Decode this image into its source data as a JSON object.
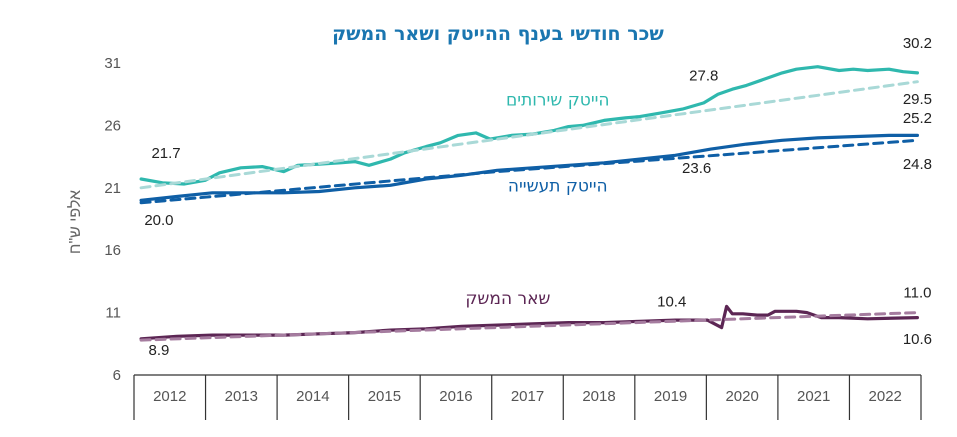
{
  "chart_data": {
    "type": "line",
    "title": "שכר חודשי בענף ההייטק ושאר המשק",
    "ylabel": "אלפי ש\"ח",
    "xlabel": "",
    "ylim": [
      6,
      33
    ],
    "yticks": [
      6,
      11,
      16,
      21,
      26,
      31
    ],
    "ytick_labels": [
      "6",
      "11",
      "16",
      "21",
      "26",
      "31"
    ],
    "xlim": [
      2011.9,
      2022.95
    ],
    "categories": [
      "2012",
      "2013",
      "2014",
      "2015",
      "2016",
      "2017",
      "2018",
      "2019",
      "2020",
      "2021",
      "2022"
    ],
    "grid": false,
    "series": [
      {
        "name": "הייטק שירותים",
        "color": "#2fb8ae",
        "dash": false,
        "x": [
          2012.0,
          2012.3,
          2012.6,
          2012.9,
          2013.1,
          2013.4,
          2013.7,
          2014.0,
          2014.2,
          2014.5,
          2014.8,
          2015.0,
          2015.2,
          2015.5,
          2015.7,
          2016.0,
          2016.2,
          2016.45,
          2016.7,
          2016.9,
          2017.2,
          2017.5,
          2017.8,
          2018.0,
          2018.2,
          2018.5,
          2018.8,
          2019.0,
          2019.3,
          2019.6,
          2019.9,
          2020.1,
          2020.3,
          2020.5,
          2020.8,
          2021.0,
          2021.2,
          2021.5,
          2021.8,
          2022.0,
          2022.2,
          2022.5,
          2022.7,
          2022.9
        ],
        "y": [
          21.7,
          21.4,
          21.3,
          21.6,
          22.2,
          22.6,
          22.7,
          22.3,
          22.8,
          22.9,
          23.0,
          23.1,
          22.8,
          23.3,
          23.8,
          24.3,
          24.6,
          25.2,
          25.4,
          24.9,
          25.2,
          25.3,
          25.6,
          25.9,
          26.0,
          26.4,
          26.6,
          26.7,
          27.0,
          27.3,
          27.8,
          28.5,
          28.9,
          29.2,
          29.8,
          30.2,
          30.5,
          30.7,
          30.4,
          30.5,
          30.4,
          30.5,
          30.3,
          30.2
        ]
      },
      {
        "name": "הייטק שירותים מגמה",
        "color": "#a9d9d7",
        "dash": true,
        "x": [
          2012.0,
          2022.9
        ],
        "y": [
          21.0,
          29.5
        ]
      },
      {
        "name": "הייטק תעשייה",
        "color": "#0f5fa6",
        "dash": false,
        "x": [
          2012.0,
          2012.5,
          2013.0,
          2013.5,
          2014.0,
          2014.5,
          2015.0,
          2015.5,
          2016.0,
          2016.5,
          2017.0,
          2017.5,
          2018.0,
          2018.5,
          2019.0,
          2019.5,
          2020.0,
          2020.5,
          2021.0,
          2021.5,
          2022.0,
          2022.5,
          2022.9
        ],
        "y": [
          20.0,
          20.3,
          20.6,
          20.6,
          20.6,
          20.7,
          21.0,
          21.2,
          21.7,
          22.0,
          22.4,
          22.6,
          22.8,
          23.0,
          23.3,
          23.6,
          24.1,
          24.5,
          24.8,
          25.0,
          25.1,
          25.2,
          25.2
        ]
      },
      {
        "name": "הייטק תעשייה מגמה",
        "color": "#0f5fa6",
        "dash": true,
        "x": [
          2012.0,
          2017.0,
          2022.9
        ],
        "y": [
          19.8,
          22.3,
          24.8
        ]
      },
      {
        "name": "שאר המשק",
        "color": "#5c2654",
        "dash": false,
        "x": [
          2012.0,
          2012.5,
          2013.0,
          2013.5,
          2014.0,
          2014.5,
          2015.0,
          2015.5,
          2016.0,
          2016.5,
          2017.0,
          2017.5,
          2018.0,
          2018.5,
          2019.0,
          2019.5,
          2019.95,
          2020.15,
          2020.22,
          2020.3,
          2020.45,
          2020.65,
          2020.8,
          2020.9,
          2021.2,
          2021.35,
          2021.55,
          2021.8,
          2022.2,
          2022.9
        ],
        "y": [
          8.9,
          9.1,
          9.2,
          9.2,
          9.2,
          9.3,
          9.4,
          9.6,
          9.7,
          9.9,
          10.0,
          10.1,
          10.2,
          10.2,
          10.3,
          10.4,
          10.4,
          9.8,
          11.5,
          10.9,
          10.9,
          10.8,
          10.8,
          11.1,
          11.1,
          11.0,
          10.6,
          10.6,
          10.5,
          10.6
        ]
      },
      {
        "name": "שאר המשק מגמה",
        "color": "#a57c9f",
        "dash": true,
        "x": [
          2012.0,
          2022.9
        ],
        "y": [
          8.8,
          11.0
        ]
      }
    ],
    "series_labels": [
      {
        "text": "הייטק שירותים",
        "x": 2017.85,
        "y": 27.6,
        "color": "#2fb8ae"
      },
      {
        "text": "הייטק תעשייה",
        "x": 2017.85,
        "y": 20.7,
        "color": "#0f5fa6"
      },
      {
        "text": "שאר המשק",
        "x": 2017.15,
        "y": 11.7,
        "color": "#5c2654"
      }
    ],
    "data_labels": [
      {
        "text": "21.7",
        "x": 2012.35,
        "y": 23.4
      },
      {
        "text": "20.0",
        "x": 2012.25,
        "y": 18.0
      },
      {
        "text": "8.9",
        "x": 2012.25,
        "y": 7.6
      },
      {
        "text": "27.8",
        "x": 2019.9,
        "y": 29.6
      },
      {
        "text": "23.6",
        "x": 2019.8,
        "y": 22.2
      },
      {
        "text": "10.4",
        "x": 2019.45,
        "y": 11.5
      },
      {
        "text": "30.2",
        "x": 2022.9,
        "y": 32.2
      },
      {
        "text": "29.5",
        "x": 2022.9,
        "y": 27.7
      },
      {
        "text": "25.2",
        "x": 2022.9,
        "y": 26.2
      },
      {
        "text": "24.8",
        "x": 2022.9,
        "y": 22.5
      },
      {
        "text": "11.0",
        "x": 2022.9,
        "y": 12.2
      },
      {
        "text": "10.6",
        "x": 2022.9,
        "y": 8.5
      }
    ]
  }
}
